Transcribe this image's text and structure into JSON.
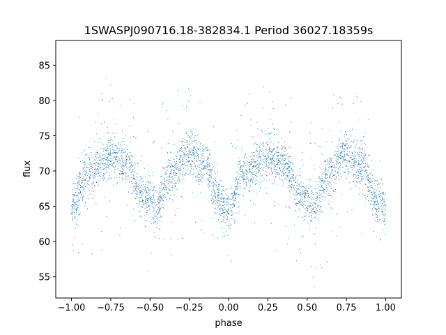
{
  "chart_data": {
    "type": "scatter",
    "title": "1SWASPJ090716.18-382834.1 Period 36027.18359s",
    "xlabel": "phase",
    "ylabel": "flux",
    "xlim": [
      -1.1,
      1.1
    ],
    "ylim": [
      52.0,
      88.5
    ],
    "xticks": [
      -1.0,
      -0.75,
      -0.5,
      -0.25,
      0.0,
      0.25,
      0.5,
      0.75,
      1.0
    ],
    "xtick_labels": [
      "−1.00",
      "−0.75",
      "−0.50",
      "−0.25",
      "0.00",
      "0.25",
      "0.50",
      "0.75",
      "1.00"
    ],
    "yticks": [
      55,
      60,
      65,
      70,
      75,
      80,
      85
    ],
    "ytick_labels": [
      "55",
      "60",
      "65",
      "70",
      "75",
      "80",
      "85"
    ],
    "grid": false,
    "marker_color": "#1f77b4",
    "series": [
      {
        "description_model": "phase-folded light curve, two-cycle sinusoid repeated over [-1, 1]",
        "x_range": [
          -1.0,
          1.0
        ],
        "min_flux": 65.0,
        "max_flux": 72.5,
        "profile": [
          {
            "x": -1.0,
            "y": 65.0
          },
          {
            "x": -0.9,
            "y": 69.5
          },
          {
            "x": -0.75,
            "y": 72.0
          },
          {
            "x": -0.65,
            "y": 71.0
          },
          {
            "x": -0.55,
            "y": 66.5
          },
          {
            "x": -0.45,
            "y": 65.0
          },
          {
            "x": -0.38,
            "y": 69.0
          },
          {
            "x": -0.25,
            "y": 72.5
          },
          {
            "x": -0.15,
            "y": 70.5
          },
          {
            "x": -0.05,
            "y": 65.5
          },
          {
            "x": 0.0,
            "y": 65.0
          },
          {
            "x": 0.1,
            "y": 69.5
          },
          {
            "x": 0.25,
            "y": 72.0
          },
          {
            "x": 0.35,
            "y": 71.0
          },
          {
            "x": 0.45,
            "y": 66.5
          },
          {
            "x": 0.55,
            "y": 65.0
          },
          {
            "x": 0.62,
            "y": 69.0
          },
          {
            "x": 0.75,
            "y": 72.5
          },
          {
            "x": 0.85,
            "y": 70.5
          },
          {
            "x": 0.95,
            "y": 65.5
          },
          {
            "x": 1.0,
            "y": 65.0
          }
        ]
      }
    ]
  }
}
